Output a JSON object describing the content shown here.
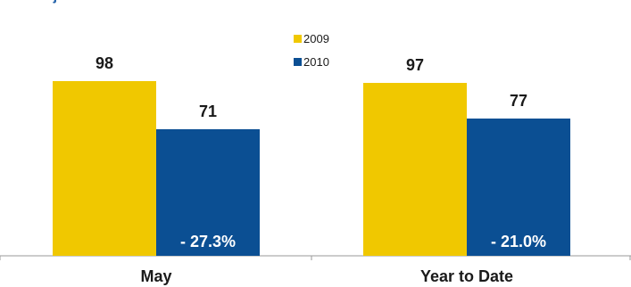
{
  "chart_data": {
    "type": "bar",
    "categories": [
      "May",
      "Year to Date"
    ],
    "series": [
      {
        "name": "2009",
        "values": [
          98,
          97
        ],
        "color": "#f0c800"
      },
      {
        "name": "2010",
        "values": [
          71,
          77
        ],
        "color": "#0b4f93"
      }
    ],
    "changes": [
      "- 27.3%",
      "- 21.0%"
    ],
    "legend_position": "top-center",
    "ylim": [
      0,
      100
    ],
    "grid": false
  }
}
